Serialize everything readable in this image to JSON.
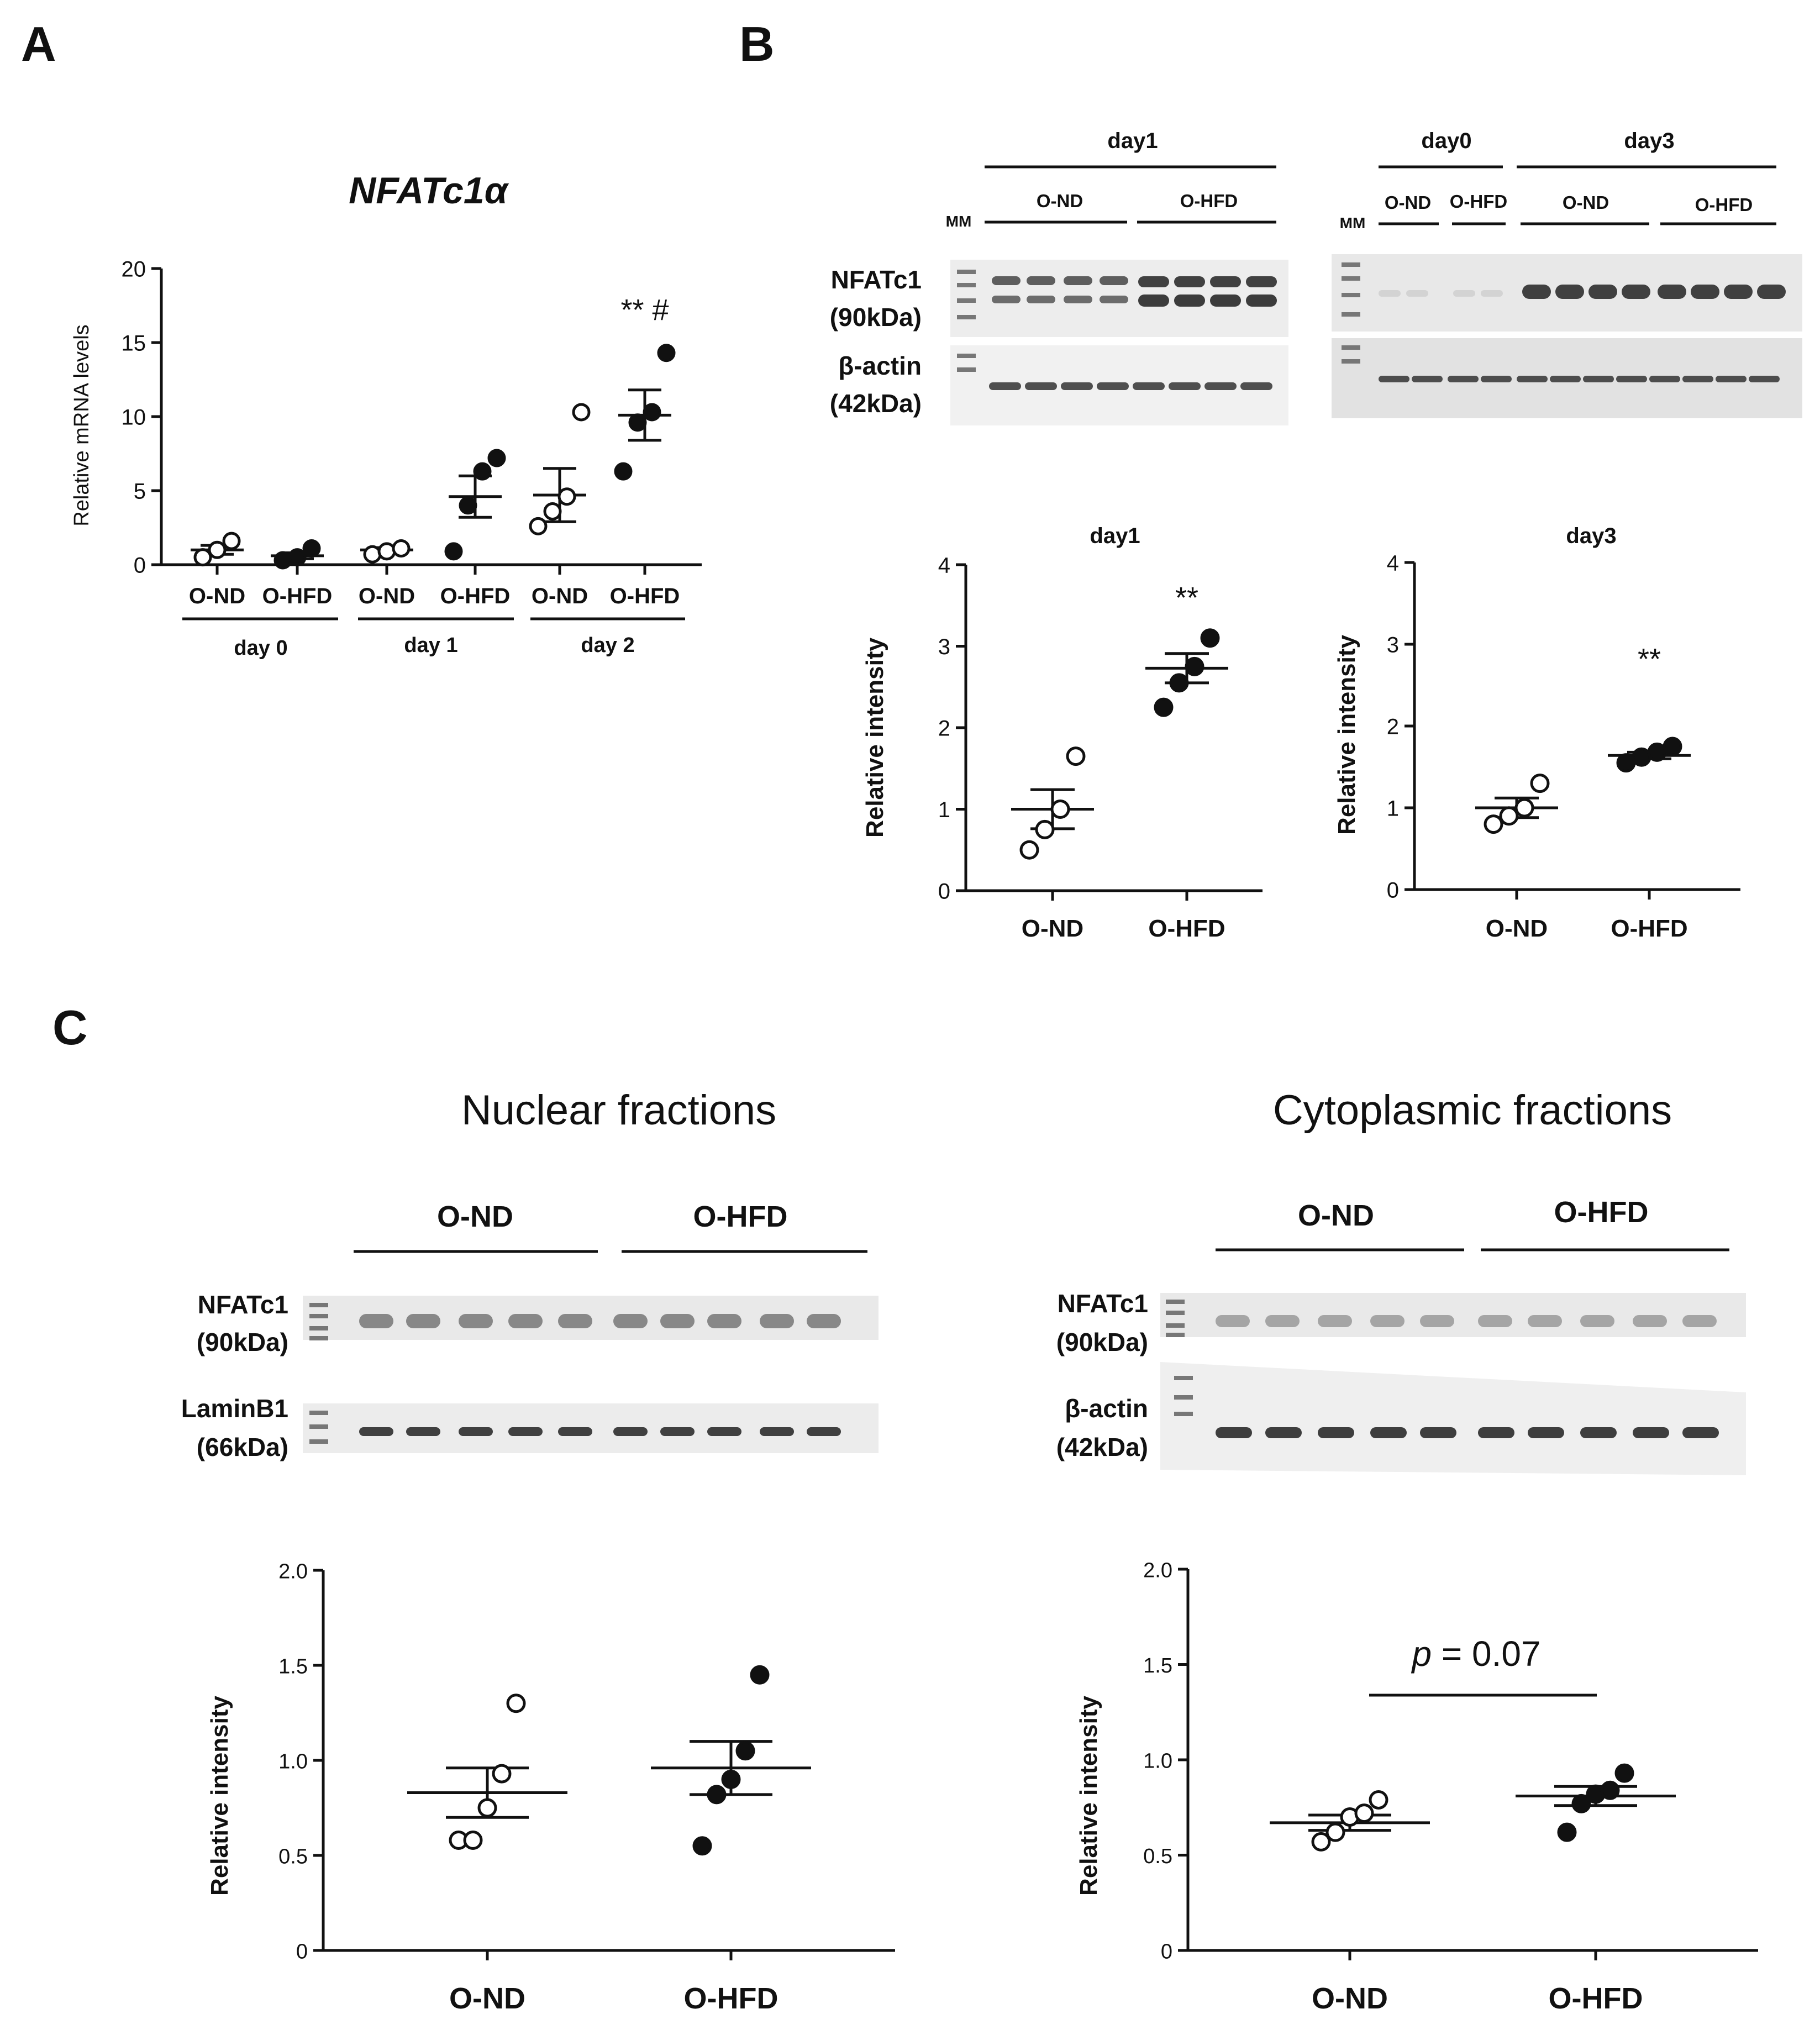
{
  "panel_labels": {
    "a": "A",
    "b": "B",
    "c": "C"
  },
  "panel_a": {
    "title": "NFATc1α",
    "chart_data": {
      "type": "scatter",
      "ylabel": "Relative mRNA levels",
      "ylim": [
        0,
        20
      ],
      "yticks": [
        "0",
        "5",
        "10",
        "15",
        "20"
      ],
      "categories": [
        "O-ND",
        "O-HFD",
        "O-ND",
        "O-HFD",
        "O-ND",
        "O-HFD"
      ],
      "day_groups": [
        {
          "label": "day 0",
          "span": [
            0,
            1
          ]
        },
        {
          "label": "day 1",
          "span": [
            2,
            3
          ]
        },
        {
          "label": "day 2",
          "span": [
            4,
            5
          ]
        }
      ],
      "groups": [
        {
          "name": "O-ND",
          "day": "day 0",
          "filled": false,
          "points": [
            0.5,
            1.0,
            1.6
          ],
          "mean": 1.0,
          "sem": 0.3
        },
        {
          "name": "O-HFD",
          "day": "day 0",
          "filled": true,
          "points": [
            0.3,
            0.5,
            1.1
          ],
          "mean": 0.6,
          "sem": 0.2
        },
        {
          "name": "O-ND",
          "day": "day 1",
          "filled": false,
          "points": [
            0.7,
            0.9,
            1.1
          ],
          "mean": 1.0,
          "sem": 0.15
        },
        {
          "name": "O-HFD",
          "day": "day 1",
          "filled": true,
          "points": [
            0.9,
            4.0,
            6.3,
            7.2
          ],
          "mean": 4.6,
          "sem": 1.4
        },
        {
          "name": "O-ND",
          "day": "day 2",
          "filled": false,
          "points": [
            2.6,
            3.6,
            4.6,
            10.3
          ],
          "mean": 4.7,
          "sem": 1.8
        },
        {
          "name": "O-HFD",
          "day": "day 2",
          "filled": true,
          "points": [
            6.3,
            9.6,
            10.3,
            14.3
          ],
          "mean": 10.1,
          "sem": 1.7
        }
      ],
      "annotations": [
        {
          "category_index": 5,
          "text": "** #"
        }
      ]
    }
  },
  "panel_b": {
    "blot_left": {
      "day": "day1",
      "groups": [
        "O-ND",
        "O-HFD"
      ],
      "marker": "MM",
      "rows": [
        {
          "protein": "NFATc1",
          "size": "(90kDa)"
        },
        {
          "protein": "β-actin",
          "size": "(42kDa)"
        }
      ]
    },
    "blot_right": {
      "days": [
        "day0",
        "day3"
      ],
      "groups_day0": [
        "O-ND",
        "O-HFD"
      ],
      "groups_day3": [
        "O-ND",
        "O-HFD"
      ],
      "marker": "MM"
    },
    "chart_left": {
      "title": "day1",
      "chart_data": {
        "type": "scatter",
        "ylabel": "Relative intensity",
        "ylim": [
          0,
          4
        ],
        "yticks": [
          "0",
          "1",
          "2",
          "3",
          "4"
        ],
        "categories": [
          "O-ND",
          "O-HFD"
        ],
        "groups": [
          {
            "name": "O-ND",
            "filled": false,
            "points": [
              0.5,
              0.75,
              1.0,
              1.65
            ],
            "mean": 1.0,
            "sem": 0.24
          },
          {
            "name": "O-HFD",
            "filled": true,
            "points": [
              2.25,
              2.55,
              2.75,
              3.1
            ],
            "mean": 2.73,
            "sem": 0.18
          }
        ],
        "annotations": [
          {
            "category_index": 1,
            "text": "**"
          }
        ]
      }
    },
    "chart_right": {
      "title": "day3",
      "chart_data": {
        "type": "scatter",
        "ylabel": "Relative intensity",
        "ylim": [
          0,
          4
        ],
        "yticks": [
          "0",
          "1",
          "2",
          "3",
          "4"
        ],
        "categories": [
          "O-ND",
          "O-HFD"
        ],
        "groups": [
          {
            "name": "O-ND",
            "filled": false,
            "points": [
              0.8,
              0.9,
              1.0,
              1.3
            ],
            "mean": 1.0,
            "sem": 0.12
          },
          {
            "name": "O-HFD",
            "filled": true,
            "points": [
              1.55,
              1.62,
              1.68,
              1.75
            ],
            "mean": 1.64,
            "sem": 0.04
          }
        ],
        "annotations": [
          {
            "category_index": 1,
            "text": "**"
          }
        ]
      }
    }
  },
  "panel_c": {
    "nuclear": {
      "title": "Nuclear fractions",
      "groups": [
        "O-ND",
        "O-HFD"
      ],
      "rows": [
        {
          "protein": "NFATc1",
          "size": "(90kDa)"
        },
        {
          "protein": "LaminB1",
          "size": "(66kDa)"
        }
      ],
      "chart_data": {
        "type": "scatter",
        "ylabel": "Relative intensity",
        "ylim": [
          0,
          2
        ],
        "yticks": [
          "0",
          "0.5",
          "1.0",
          "1.5",
          "2.0"
        ],
        "categories": [
          "O-ND",
          "O-HFD"
        ],
        "groups": [
          {
            "name": "O-ND",
            "filled": false,
            "points": [
              0.58,
              0.58,
              0.75,
              0.93,
              1.3
            ],
            "mean": 0.83,
            "sem": 0.13
          },
          {
            "name": "O-HFD",
            "filled": true,
            "points": [
              0.55,
              0.82,
              0.9,
              1.05,
              1.45
            ],
            "mean": 0.96,
            "sem": 0.14
          }
        ]
      }
    },
    "cytoplasmic": {
      "title": "Cytoplasmic fractions",
      "groups": [
        "O-ND",
        "O-HFD"
      ],
      "rows": [
        {
          "protein": "NFATc1",
          "size": "(90kDa)"
        },
        {
          "protein": "β-actin",
          "size": "(42kDa)"
        }
      ],
      "chart_data": {
        "type": "scatter",
        "ylabel": "Relative intensity",
        "ylim": [
          0,
          2
        ],
        "yticks": [
          "0",
          "0.5",
          "1.0",
          "1.5",
          "2.0"
        ],
        "categories": [
          "O-ND",
          "O-HFD"
        ],
        "groups": [
          {
            "name": "O-ND",
            "filled": false,
            "points": [
              0.57,
              0.62,
              0.7,
              0.72,
              0.79
            ],
            "mean": 0.67,
            "sem": 0.04
          },
          {
            "name": "O-HFD",
            "filled": true,
            "points": [
              0.62,
              0.77,
              0.82,
              0.84,
              0.93
            ],
            "mean": 0.81,
            "sem": 0.05
          }
        ],
        "pvalue": {
          "italic": "p",
          "rest": " = 0.07"
        }
      }
    }
  }
}
